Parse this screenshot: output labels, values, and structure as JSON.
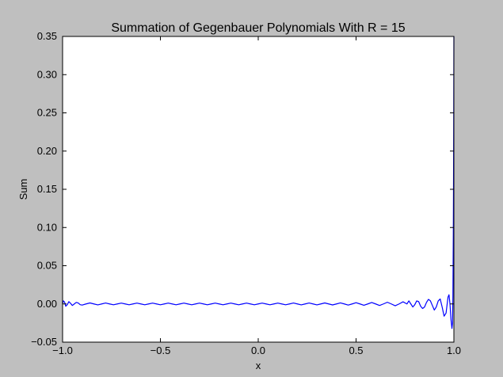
{
  "chart_data": {
    "type": "line",
    "title": "Summation of Gegenbauer Polynomials With R = 15",
    "xlabel": "x",
    "ylabel": "Sum",
    "xlim": [
      -1.0,
      1.0
    ],
    "ylim": [
      -0.05,
      0.35
    ],
    "x_ticks": [
      -1.0,
      -0.5,
      0.0,
      0.5,
      1.0
    ],
    "x_tick_labels": [
      "−1.0",
      "−0.5",
      "0.0",
      "0.5",
      "1.0"
    ],
    "y_ticks": [
      -0.05,
      0.0,
      0.05,
      0.1,
      0.15,
      0.2,
      0.25,
      0.3,
      0.35
    ],
    "y_tick_labels": [
      "−0.05",
      "0.00",
      "0.05",
      "0.10",
      "0.15",
      "0.20",
      "0.25",
      "0.30",
      "0.35"
    ],
    "grid": false,
    "colors": {
      "line": "#0000ff",
      "background": "#bfbfbf",
      "plot_area": "#ffffff"
    },
    "series": [
      {
        "x": [
          -1.0,
          -0.996,
          -0.99,
          -0.984,
          -0.976,
          -0.968,
          -0.96,
          -0.95,
          -0.94,
          -0.93,
          -0.92,
          -0.91,
          -0.9,
          -0.88,
          -0.86,
          -0.84,
          -0.82,
          -0.8,
          -0.78,
          -0.76,
          -0.74,
          -0.72,
          -0.7,
          -0.68,
          -0.66,
          -0.64,
          -0.62,
          -0.6,
          -0.58,
          -0.56,
          -0.54,
          -0.52,
          -0.5,
          -0.48,
          -0.46,
          -0.44,
          -0.42,
          -0.4,
          -0.38,
          -0.36,
          -0.34,
          -0.32,
          -0.3,
          -0.28,
          -0.26,
          -0.24,
          -0.22,
          -0.2,
          -0.18,
          -0.16,
          -0.14,
          -0.12,
          -0.1,
          -0.08,
          -0.06,
          -0.04,
          -0.02,
          0.0,
          0.02,
          0.04,
          0.06,
          0.08,
          0.1,
          0.12,
          0.14,
          0.16,
          0.18,
          0.2,
          0.22,
          0.24,
          0.26,
          0.28,
          0.3,
          0.32,
          0.34,
          0.36,
          0.38,
          0.4,
          0.42,
          0.44,
          0.46,
          0.48,
          0.5,
          0.52,
          0.54,
          0.56,
          0.58,
          0.6,
          0.62,
          0.64,
          0.66,
          0.68,
          0.7,
          0.72,
          0.74,
          0.76,
          0.77,
          0.78,
          0.79,
          0.8,
          0.81,
          0.82,
          0.83,
          0.84,
          0.85,
          0.86,
          0.87,
          0.88,
          0.89,
          0.9,
          0.91,
          0.92,
          0.93,
          0.94,
          0.95,
          0.96,
          0.97,
          0.975,
          0.98,
          0.985,
          0.99,
          0.993,
          0.995,
          0.997,
          0.998,
          0.999,
          1.0
        ],
        "y": [
          0.0,
          0.004,
          0.0025,
          -0.003,
          -0.001,
          0.003,
          0.001,
          -0.002,
          0.0,
          0.002,
          0.0012,
          -0.001,
          -0.0015,
          0.0,
          0.0013,
          0.0,
          -0.0012,
          0.0,
          0.0012,
          0.0,
          -0.0011,
          0.0,
          0.0011,
          0.0,
          -0.0011,
          0.0,
          0.0011,
          0.0,
          -0.0011,
          0.0,
          0.0011,
          0.0,
          -0.0011,
          0.0,
          0.0011,
          0.0,
          -0.0011,
          0.0,
          0.0011,
          0.0,
          -0.0011,
          0.0,
          0.0011,
          0.0,
          -0.0011,
          0.0,
          0.0011,
          0.0,
          -0.0011,
          0.0,
          0.0011,
          0.0,
          -0.0011,
          0.0,
          0.0011,
          0.0,
          -0.0011,
          0.0,
          0.0011,
          0.0,
          -0.0011,
          0.0,
          0.0011,
          0.0,
          -0.0011,
          0.0,
          0.0012,
          0.0,
          -0.0012,
          0.0,
          0.0012,
          0.0,
          -0.0012,
          0.0,
          0.0013,
          0.0,
          -0.0013,
          0.0,
          0.0014,
          0.0,
          -0.0015,
          0.0,
          0.0016,
          0.0,
          -0.0017,
          0.0,
          0.0019,
          0.0,
          -0.002,
          0.0,
          0.0022,
          0.0,
          -0.0024,
          0.0,
          0.0028,
          0.0,
          0.004,
          0.0,
          -0.004,
          -0.001,
          0.004,
          0.003,
          -0.003,
          -0.006,
          -0.004,
          0.002,
          0.006,
          0.004,
          -0.002,
          -0.008,
          -0.004,
          0.004,
          0.0065,
          -0.004,
          -0.016,
          -0.012,
          0.009,
          0.012,
          0.0,
          -0.02,
          -0.032,
          -0.025,
          0.01,
          0.09,
          0.15,
          0.23,
          0.35
        ]
      }
    ]
  }
}
